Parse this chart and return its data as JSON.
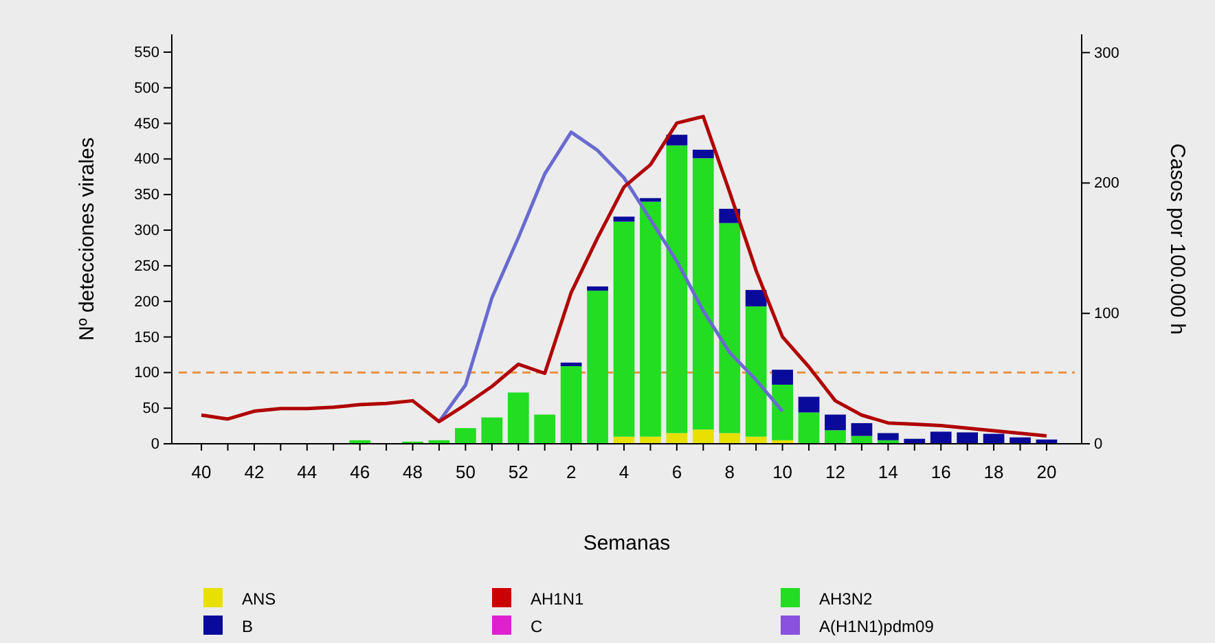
{
  "chart_data": {
    "type": "bar",
    "stacked": true,
    "xlabel": "Semanas",
    "ylabel": "Nº detecciones virales",
    "y2label": "Casos por 100.000 h",
    "categories": [
      "40",
      null,
      "42",
      null,
      "44",
      null,
      "46",
      null,
      "48",
      null,
      "50",
      null,
      "52",
      null,
      "2",
      null,
      "4",
      null,
      "6",
      null,
      "8",
      null,
      "10",
      null,
      "12",
      null,
      "14",
      null,
      "16",
      null,
      "18",
      null,
      "20"
    ],
    "series": [
      {
        "name": "ANS",
        "color": "#e8e000",
        "values": [
          0,
          0,
          0,
          0,
          0,
          0,
          0,
          0,
          0,
          0,
          0,
          0,
          0,
          0,
          0,
          0,
          10,
          10,
          15,
          20,
          15,
          10,
          5,
          0,
          0,
          0,
          0,
          0,
          0,
          0,
          0,
          0,
          0
        ]
      },
      {
        "name": "AH1N1",
        "color": "#cc0000",
        "values": [
          0,
          0,
          0,
          0,
          0,
          0,
          0,
          0,
          0,
          0,
          0,
          0,
          0,
          0,
          0,
          0,
          0,
          0,
          0,
          0,
          0,
          0,
          0,
          0,
          0,
          0,
          0,
          0,
          0,
          0,
          0,
          0,
          0
        ]
      },
      {
        "name": "AH3N2",
        "color": "#22dd22",
        "values": [
          0,
          0,
          0,
          0,
          0,
          0,
          5,
          0,
          3,
          5,
          22,
          37,
          72,
          41,
          109,
          215,
          302,
          330,
          404,
          381,
          295,
          183,
          78,
          44,
          19,
          11,
          5,
          0,
          0,
          0,
          0,
          0,
          0
        ]
      },
      {
        "name": "B",
        "color": "#0a0a9a",
        "values": [
          0,
          0,
          0,
          0,
          0,
          0,
          0,
          0,
          0,
          0,
          0,
          0,
          0,
          0,
          5,
          6,
          7,
          5,
          15,
          12,
          20,
          23,
          21,
          22,
          22,
          18,
          10,
          7,
          17,
          16,
          14,
          9,
          6
        ]
      },
      {
        "name": "C",
        "color": "#e020d0",
        "values": [
          0,
          0,
          0,
          0,
          0,
          0,
          0,
          0,
          0,
          0,
          0,
          0,
          0,
          0,
          0,
          0,
          0,
          0,
          0,
          0,
          0,
          0,
          0,
          0,
          0,
          0,
          0,
          0,
          0,
          0,
          0,
          0,
          0
        ]
      },
      {
        "name": "A(H1N1)pdm09",
        "color": "#8a50e0",
        "values": [
          0,
          0,
          0,
          0,
          0,
          0,
          0,
          0,
          0,
          0,
          0,
          0,
          0,
          0,
          0,
          0,
          0,
          0,
          0,
          0,
          0,
          0,
          0,
          0,
          0,
          0,
          0,
          0,
          0,
          0,
          0,
          0,
          0
        ]
      },
      {
        "type": "line",
        "axis": "y2",
        "color": "#6a6ad0",
        "values": [
          null,
          null,
          null,
          null,
          null,
          null,
          null,
          null,
          null,
          17,
          45,
          112,
          158,
          207,
          239,
          225,
          204,
          172,
          140,
          102,
          70,
          49,
          25,
          null,
          null,
          null,
          null,
          null,
          null,
          null,
          null,
          null,
          null
        ]
      },
      {
        "type": "line",
        "axis": "y2",
        "color": "#b00000",
        "values": [
          22,
          19,
          25,
          27,
          27,
          28,
          30,
          31,
          33,
          17,
          30,
          44,
          61,
          54,
          116,
          158,
          197,
          214,
          246,
          251,
          193,
          133,
          82,
          59,
          33,
          22,
          16,
          15,
          14,
          12,
          10,
          8,
          6
        ]
      }
    ],
    "ylim": [
      0,
      575
    ],
    "yticks": [
      0,
      50,
      100,
      150,
      200,
      250,
      300,
      350,
      400,
      450,
      500,
      550
    ],
    "y2lim": [
      0,
      314
    ],
    "y2ticks": [
      0,
      100,
      200,
      300
    ],
    "ref_lines": [
      {
        "axis": "y",
        "value": 100,
        "color": "#e89040",
        "line_style": "dashed"
      }
    ],
    "legend": "bottom",
    "grid": false,
    "marker": "none"
  }
}
